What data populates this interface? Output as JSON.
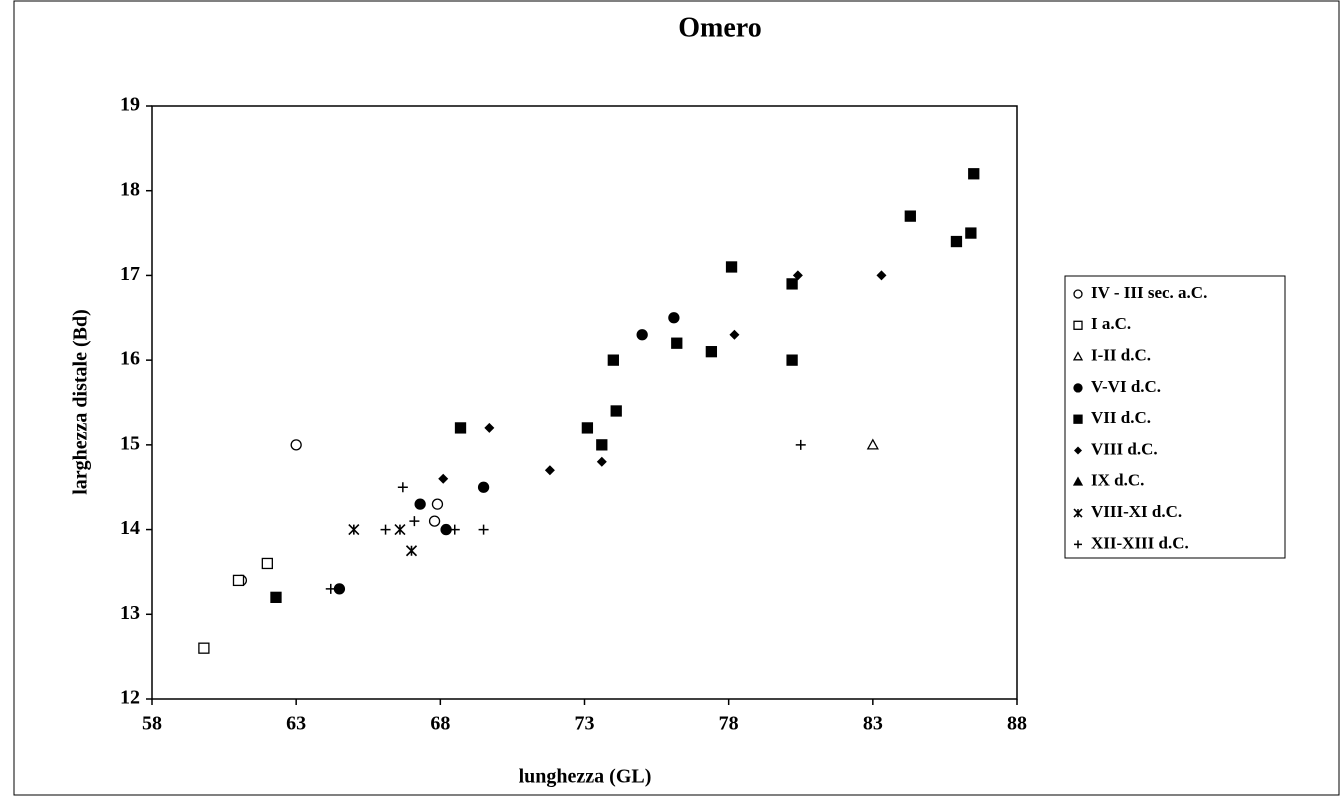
{
  "chart_data": {
    "type": "scatter",
    "title": "Omero",
    "x_label": "lunghezza (GL)",
    "y_label": "larghezza distale (Bd)",
    "xlim": [
      58,
      88
    ],
    "xticks": [
      58,
      63,
      68,
      73,
      78,
      83,
      88
    ],
    "ylim": [
      12,
      19
    ],
    "yticks": [
      12,
      13,
      14,
      15,
      16,
      17,
      18,
      19
    ],
    "grid": false,
    "legend": "right",
    "color": "#000000",
    "series": [
      {
        "name": "IV - III sec. a.C.",
        "marker": "circle-open",
        "x": [
          63.0,
          67.9,
          67.8,
          61.1
        ],
        "y": [
          15.0,
          14.3,
          14.1,
          13.4
        ]
      },
      {
        "name": "I a.C.",
        "marker": "square-open",
        "x": [
          59.8,
          61.0,
          62.0
        ],
        "y": [
          12.6,
          13.4,
          13.6
        ]
      },
      {
        "name": "I-II d.C.",
        "marker": "triangle-open",
        "x": [
          83.0
        ],
        "y": [
          15.0
        ]
      },
      {
        "name": "V-VI d.C.",
        "marker": "circle",
        "x": [
          76.1,
          75.0,
          69.5,
          67.3,
          68.2,
          64.5
        ],
        "y": [
          16.5,
          16.3,
          14.5,
          14.3,
          14.0,
          13.3
        ]
      },
      {
        "name": "VII d.C.",
        "marker": "square",
        "x": [
          86.5,
          84.3,
          86.4,
          85.9,
          78.1,
          80.2,
          80.2,
          76.2,
          77.4,
          74.0,
          74.1,
          73.1,
          73.6,
          68.7,
          62.3
        ],
        "y": [
          18.2,
          17.7,
          17.5,
          17.4,
          17.1,
          16.9,
          16.0,
          16.2,
          16.1,
          16.0,
          15.4,
          15.2,
          15.0,
          15.2,
          13.2
        ]
      },
      {
        "name": "VIII d.C.",
        "marker": "diamond",
        "x": [
          80.4,
          83.3,
          78.2,
          69.7,
          71.8,
          73.6,
          68.1
        ],
        "y": [
          17.0,
          17.0,
          16.3,
          15.2,
          14.7,
          14.8,
          14.6
        ]
      },
      {
        "name": "IX d.C.",
        "marker": "triangle",
        "x": [],
        "y": []
      },
      {
        "name": "VIII-XI d.C.",
        "marker": "asterisk",
        "x": [
          65.0,
          66.6,
          67.0
        ],
        "y": [
          14.0,
          14.0,
          13.75
        ]
      },
      {
        "name": "XII-XIII d.C.",
        "marker": "plus",
        "x": [
          66.7,
          67.1,
          66.1,
          68.5,
          69.5,
          64.2,
          80.5
        ],
        "y": [
          14.5,
          14.1,
          14.0,
          14.0,
          14.0,
          13.3,
          15.0
        ]
      }
    ]
  }
}
